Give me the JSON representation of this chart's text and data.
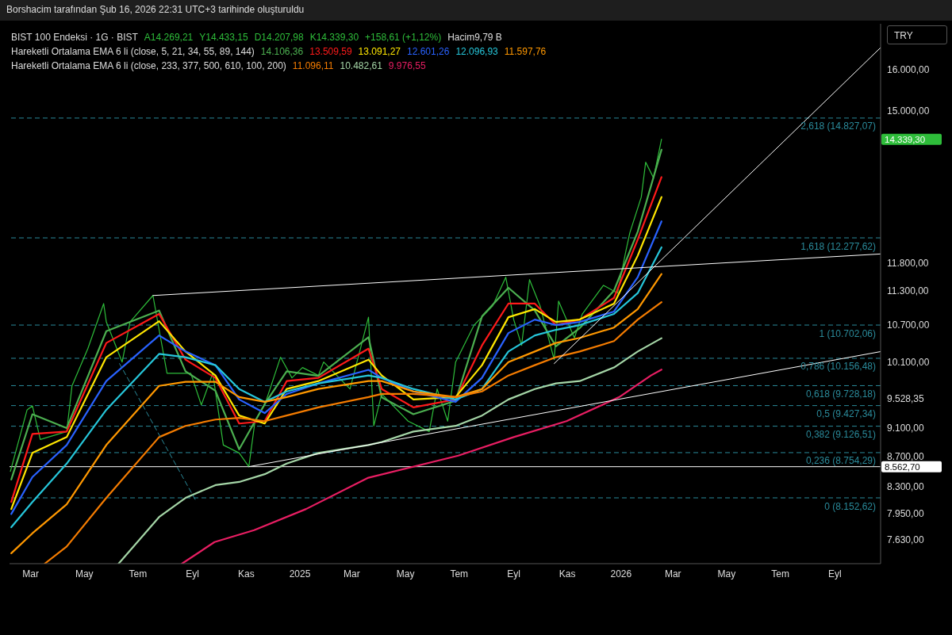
{
  "chart_data": {
    "type": "line",
    "title": "BIST 100 Endeksi · 1G · BIST",
    "annotations": [
      "Borshacim tarafından Şub 16, 2026 22:31 UTC+3 tarihinde oluşturuldu",
      "A14.269,21",
      "Y14.433,15",
      "D14.207,98",
      "K14.339,30",
      "+158,61 (+1,12%)",
      "Hacim9,79 B",
      "Hareketli Ortalama EMA 6 li (close, 5, 21, 34, 55, 89, 144)",
      "Hareketli Ortalama EMA 6 li (close, 233, 377, 500, 610, 100, 200)",
      "TRY"
    ],
    "legend": "top",
    "log": "y",
    "ylim": [
      7350,
      17200
    ],
    "yticks": [
      {
        "value": 7630,
        "label": "7.630,00"
      },
      {
        "value": 7950,
        "label": "7.950,00"
      },
      {
        "value": 8300,
        "label": "8.300,00"
      },
      {
        "value": 8700,
        "label": "8.700,00"
      },
      {
        "value": 9100,
        "label": "9.100,00"
      },
      {
        "value": 9528.35,
        "label": "9.528,35"
      },
      {
        "value": 10100,
        "label": "10.100,00"
      },
      {
        "value": 10700,
        "label": "10.700,00"
      },
      {
        "value": 11300,
        "label": "11.300,00"
      },
      {
        "value": 11800,
        "label": "11.800,00"
      },
      {
        "value": 15000,
        "label": "15.000,00"
      },
      {
        "value": 16000,
        "label": "16.000,00"
      }
    ],
    "xlim": [
      "2024-02-06",
      "2026-10-23"
    ],
    "xticks": [
      {
        "value": "2024-03-01",
        "label": "Mar"
      },
      {
        "value": "2024-05-01",
        "label": "May"
      },
      {
        "value": "2024-07-01",
        "label": "Tem"
      },
      {
        "value": "2024-09-01",
        "label": "Eyl"
      },
      {
        "value": "2024-11-01",
        "label": "Kas"
      },
      {
        "value": "2025-01-01",
        "label": "2025"
      },
      {
        "value": "2025-03-01",
        "label": "Mar"
      },
      {
        "value": "2025-05-01",
        "label": "May"
      },
      {
        "value": "2025-07-01",
        "label": "Tem"
      },
      {
        "value": "2025-09-01",
        "label": "Eyl"
      },
      {
        "value": "2025-11-01",
        "label": "Kas"
      },
      {
        "value": "2026-01-01",
        "label": "2026"
      },
      {
        "value": "2026-03-01",
        "label": "Mar"
      },
      {
        "value": "2026-05-01",
        "label": "May"
      },
      {
        "value": "2026-07-01",
        "label": "Tem"
      },
      {
        "value": "2026-09-01",
        "label": "Eyl"
      }
    ],
    "x": [
      "2024-02-08",
      "2024-03-03",
      "2024-04-11",
      "2024-05-26",
      "2024-07-25",
      "2024-08-24",
      "2024-09-27",
      "2024-10-24",
      "2024-11-22",
      "2024-12-17",
      "2025-01-22",
      "2025-03-20",
      "2025-04-04",
      "2025-05-10",
      "2025-06-27",
      "2025-07-27",
      "2025-08-26",
      "2025-09-25",
      "2025-10-19",
      "2025-11-15",
      "2025-12-24",
      "2026-01-20",
      "2026-02-16"
    ],
    "series": [
      {
        "name": "14.339,30",
        "color": "#2ebd3a",
        "x": [
          "2024-02-07",
          "2024-02-26",
          "2024-03-03",
          "2024-03-12",
          "2024-04-11",
          "2024-04-17",
          "2024-05-05",
          "2024-05-23",
          "2024-05-26",
          "2024-06-13",
          "2024-06-22",
          "2024-07-18",
          "2024-08-03",
          "2024-08-30",
          "2024-09-11",
          "2024-09-24",
          "2024-10-06",
          "2024-10-24",
          "2024-11-04",
          "2024-11-11",
          "2024-11-22",
          "2024-12-10",
          "2024-12-23",
          "2025-01-04",
          "2025-01-22",
          "2025-01-28",
          "2025-02-27",
          "2025-03-20",
          "2025-03-26",
          "2025-04-04",
          "2025-05-04",
          "2025-05-28",
          "2025-06-06",
          "2025-06-18",
          "2025-06-27",
          "2025-07-18",
          "2025-08-08",
          "2025-08-23",
          "2025-09-01",
          "2025-09-10",
          "2025-09-19",
          "2025-10-01",
          "2025-10-17",
          "2025-10-22",
          "2025-11-09",
          "2025-11-18",
          "2025-12-12",
          "2025-12-28",
          "2026-01-06",
          "2026-01-11",
          "2026-01-24",
          "2026-01-29",
          "2026-02-07",
          "2026-02-16"
        ],
        "values": [
          8500,
          9365,
          9424,
          8937,
          9050,
          9725,
          10312,
          11070,
          10755,
          10097,
          10755,
          11212,
          9920,
          9920,
          9436,
          9920,
          8860,
          8750,
          8563,
          9199,
          9436,
          10174,
          9848,
          10010,
          9885,
          10097,
          9677,
          10835,
          9131,
          9602,
          9199,
          9050,
          9677,
          9199,
          10097,
          10702,
          11028,
          11540,
          10795,
          10365,
          11496,
          11028,
          10135,
          11114,
          10488,
          10891,
          11393,
          11255,
          11985,
          12377,
          13091,
          13831,
          13492,
          14339.3
        ]
      },
      {
        "name": "14.106,36",
        "color": "#4caf50",
        "values": [
          8391,
          9300,
          9100,
          10600,
          10950,
          9950,
          9650,
          8800,
          9450,
          9950,
          9880,
          10500,
          9550,
          9300,
          9500,
          10850,
          11350,
          10950,
          10350,
          10650,
          11300,
          12400,
          14106.36
        ]
      },
      {
        "name": "13.509,59",
        "color": "#ff1a1a",
        "values": [
          8100,
          9016,
          9050,
          10405,
          10891,
          10135,
          9848,
          9165,
          9199,
          9799,
          9848,
          10312,
          9677,
          9401,
          9519,
          10365,
          11070,
          11070,
          10702,
          10795,
          11170,
          12246,
          13509.59
        ]
      },
      {
        "name": "13.091,27",
        "color": "#ffe600",
        "values": [
          8010,
          8750,
          8971,
          10174,
          10768,
          10266,
          9885,
          9281,
          9165,
          9677,
          9799,
          10135,
          9885,
          9519,
          9555,
          10047,
          10835,
          10975,
          10755,
          10795,
          11070,
          11940,
          13091.27
        ]
      },
      {
        "name": "12.601,26",
        "color": "#2962ff",
        "values": [
          7948,
          8424,
          8860,
          9799,
          10528,
          10266,
          10047,
          9519,
          9317,
          9602,
          9762,
          9973,
          9848,
          9640,
          9483,
          9848,
          10568,
          10795,
          10702,
          10755,
          10933,
          11540,
          12601.26
        ]
      },
      {
        "name": "12.096,93",
        "color": "#26c6da",
        "values": [
          7784,
          8100,
          8604,
          9365,
          10227,
          10174,
          10047,
          9677,
          9483,
          9640,
          9762,
          9885,
          9848,
          9677,
          9519,
          9677,
          10266,
          10528,
          10622,
          10702,
          10891,
          11255,
          12096.93
        ]
      },
      {
        "name": "11.597,76",
        "color": "#ff9800",
        "values": [
          7471,
          7710,
          8071,
          8860,
          9725,
          9787,
          9787,
          9555,
          9483,
          9555,
          9677,
          9799,
          9799,
          9640,
          9555,
          9677,
          10097,
          10266,
          10405,
          10488,
          10660,
          10975,
          11597.76
        ]
      },
      {
        "name": "11.096,11",
        "color": "#f57c00",
        "x": [
          "2024-03-17",
          "2024-04-11",
          "2024-05-26",
          "2024-07-25",
          "2024-08-24",
          "2024-09-27",
          "2024-10-24",
          "2024-11-22",
          "2024-12-17",
          "2025-01-22",
          "2025-03-20",
          "2025-04-04",
          "2025-05-10",
          "2025-06-27",
          "2025-07-27",
          "2025-08-26",
          "2025-09-25",
          "2025-10-19",
          "2025-11-15",
          "2025-12-24",
          "2026-01-20",
          "2026-02-16"
        ],
        "values": [
          7350,
          7551,
          8152,
          8971,
          9131,
          9222,
          9246,
          9199,
          9281,
          9401,
          9555,
          9602,
          9602,
          9555,
          9640,
          9885,
          10047,
          10174,
          10266,
          10435,
          10795,
          11096.11
        ]
      },
      {
        "name": "10.482,61",
        "color": "#a5d6a7",
        "x": [
          "2024-06-09",
          "2024-07-25",
          "2024-08-24",
          "2024-09-27",
          "2024-10-24",
          "2024-11-22",
          "2024-12-17",
          "2025-01-22",
          "2025-03-20",
          "2025-04-04",
          "2025-05-10",
          "2025-06-27",
          "2025-07-27",
          "2025-08-26",
          "2025-09-25",
          "2025-10-19",
          "2025-11-15",
          "2025-12-24",
          "2026-01-20",
          "2026-02-16"
        ],
        "values": [
          7350,
          7910,
          8152,
          8318,
          8359,
          8462,
          8604,
          8750,
          8860,
          8903,
          9050,
          9131,
          9281,
          9519,
          9677,
          9762,
          9799,
          10010,
          10266,
          10482.61
        ]
      },
      {
        "name": "9.976,55",
        "color": "#e91e63",
        "x": [
          "2024-08-20",
          "2024-09-26",
          "2024-11-10",
          "2025-01-08",
          "2025-03-19",
          "2025-06-30",
          "2025-09-01",
          "2025-10-31",
          "2025-12-30",
          "2026-02-04",
          "2026-02-16"
        ],
        "values": [
          7350,
          7604,
          7748,
          8010,
          8412,
          8713,
          8971,
          9199,
          9555,
          9885,
          9976.55
        ]
      },
      {
        "color": "#ffffff",
        "x": [
          "2024-07-18",
          "2026-10-23"
        ],
        "values": [
          11212,
          11970
        ]
      },
      {
        "color": "#ffffff",
        "x": [
          "2024-11-04",
          "2026-10-23"
        ],
        "values": [
          8563,
          10264
        ]
      },
      {
        "color": "#ffffff",
        "x": [
          "2025-10-17",
          "2026-10-23"
        ],
        "values": [
          10072,
          16566
        ]
      },
      {
        "color": "#2a8a9a",
        "line_style": "dashed",
        "x": [
          "2024-06-10",
          "2024-09-04"
        ],
        "values": [
          10072,
          8132
        ]
      }
    ],
    "ref_lines": [
      {
        "axis": "y",
        "value": 14827.07,
        "label": "2,618 (14.827,07)",
        "color": "#2a8a9a",
        "line_style": "dashed"
      },
      {
        "axis": "y",
        "value": 12277.62,
        "label": "1,618 (12.277,62)",
        "color": "#2a8a9a",
        "line_style": "dashed"
      },
      {
        "axis": "y",
        "value": 10702.06,
        "label": "1 (10.702,06)",
        "color": "#2a8a9a",
        "line_style": "dashed"
      },
      {
        "axis": "y",
        "value": 10156.48,
        "label": "0,786 (10.156,48)",
        "color": "#2a8a9a",
        "line_style": "dashed"
      },
      {
        "axis": "y",
        "value": 9728.18,
        "label": "0,618 (9.728,18)",
        "color": "#2a8a9a",
        "line_style": "dashed"
      },
      {
        "axis": "y",
        "value": 9427.34,
        "label": "0,5 (9.427,34)",
        "color": "#2a8a9a",
        "line_style": "dashed"
      },
      {
        "axis": "y",
        "value": 9126.51,
        "label": "0,382 (9.126,51)",
        "color": "#2a8a9a",
        "line_style": "dashed"
      },
      {
        "axis": "y",
        "value": 8754.29,
        "label": "0,236 (8.754,29)",
        "color": "#2a8a9a",
        "line_style": "dashed"
      },
      {
        "axis": "y",
        "value": 8152.62,
        "label": "0 (8.152,62)",
        "color": "#2a8a9a",
        "line_style": "dashed"
      },
      {
        "axis": "y",
        "value": 8562.7,
        "label": "8.562,70",
        "color": "#ffffff",
        "line_style": "solid"
      }
    ]
  }
}
